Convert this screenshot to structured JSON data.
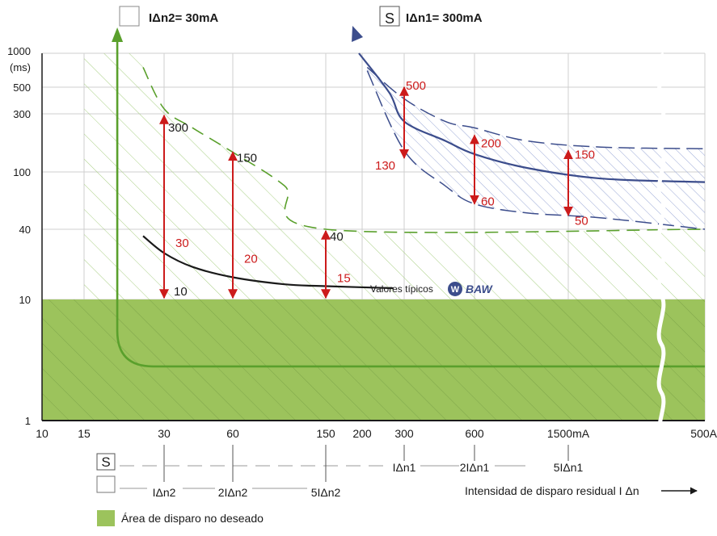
{
  "header": {
    "legend_30ma": "IΔn2= 30mA",
    "legend_300ma": "IΔn1= 300mA",
    "s_symbol": "S"
  },
  "chart_data": {
    "type": "line",
    "y_scale": "log",
    "x_scale": "log",
    "y_ticks": [
      {
        "value": 1000,
        "label": "1000"
      },
      {
        "value": 500,
        "label": "500"
      },
      {
        "value": 300,
        "label": "300"
      },
      {
        "value": 100,
        "label": "100"
      },
      {
        "value": 40,
        "label": "40"
      },
      {
        "value": 10,
        "label": "10"
      },
      {
        "value": 1,
        "label": "1"
      }
    ],
    "y_unit": "(ms)",
    "x_ticks": [
      {
        "value": 10,
        "label": "10"
      },
      {
        "value": 15,
        "label": "15"
      },
      {
        "value": 30,
        "label": "30"
      },
      {
        "value": 60,
        "label": "60"
      },
      {
        "value": 150,
        "label": "150"
      },
      {
        "value": 200,
        "label": "200"
      },
      {
        "value": 300,
        "label": "300"
      },
      {
        "value": 600,
        "label": "600"
      },
      {
        "value": 1500,
        "label": "1500mA"
      },
      {
        "value": 5000,
        "label": "500A"
      }
    ],
    "s_row_labels": [
      {
        "value": 300,
        "label": "IΔn1"
      },
      {
        "value": 600,
        "label": "2IΔn1"
      },
      {
        "value": 1500,
        "label": "5IΔn1"
      }
    ],
    "plain_row_labels": [
      {
        "value": 30,
        "label": "IΔn2"
      },
      {
        "value": 60,
        "label": "2IΔn2"
      },
      {
        "value": 150,
        "label": "5IΔn2"
      }
    ],
    "xlabel": "Intensidad de disparo residual I Δn",
    "typical_label": "Valores típicos",
    "brand": "BAW",
    "undesired_area_label": "Área de disparo no deseado",
    "series": [
      {
        "name": "IΔn2= 30mA",
        "points": [
          [
            20,
            1000
          ],
          [
            20,
            5
          ],
          [
            35,
            2.8
          ],
          [
            5000,
            2.8
          ]
        ]
      },
      {
        "name": "IΔn1= 300mA",
        "points": [
          [
            195,
            1000
          ],
          [
            260,
            450
          ],
          [
            300,
            260
          ],
          [
            450,
            180
          ],
          [
            600,
            140
          ],
          [
            1000,
            108
          ],
          [
            2000,
            90
          ],
          [
            5000,
            85
          ]
        ]
      },
      {
        "name": "Valores típicos",
        "points": [
          [
            25,
            35
          ],
          [
            30,
            25
          ],
          [
            40,
            19
          ],
          [
            60,
            15.5
          ],
          [
            100,
            13.5
          ],
          [
            150,
            13
          ],
          [
            270,
            12.5
          ]
        ]
      }
    ],
    "band_30ma": {
      "upper": [
        [
          25,
          750
        ],
        [
          30,
          330
        ],
        [
          40,
          230
        ],
        [
          60,
          145
        ],
        [
          100,
          80
        ],
        [
          150,
          40
        ],
        [
          5000,
          40
        ]
      ],
      "lower_ms": 10
    },
    "band_300ma": {
      "upper": [
        [
          210,
          750
        ],
        [
          300,
          400
        ],
        [
          450,
          260
        ],
        [
          600,
          230
        ],
        [
          1000,
          180
        ],
        [
          2000,
          160
        ],
        [
          5000,
          155
        ]
      ],
      "lower": [
        [
          210,
          700
        ],
        [
          300,
          150
        ],
        [
          450,
          80
        ],
        [
          600,
          60
        ],
        [
          1000,
          52
        ],
        [
          2000,
          48
        ],
        [
          5000,
          40
        ]
      ]
    },
    "arrows_30ma": [
      {
        "x": 30,
        "min": 10,
        "max": 300,
        "min_label": "10",
        "max_label": "300",
        "mid_label": "30"
      },
      {
        "x": 60,
        "min": 10,
        "max": 150,
        "min_label": "",
        "max_label": "150",
        "mid_label": "20"
      },
      {
        "x": 150,
        "min": 10,
        "max": 40,
        "min_label": "",
        "max_label": "40",
        "mid_label": "15"
      }
    ],
    "arrows_300ma": [
      {
        "x": 300,
        "min": 130,
        "max": 500,
        "min_label": "130",
        "max_label": "500"
      },
      {
        "x": 600,
        "min": 60,
        "max": 200,
        "min_label": "60",
        "max_label": "200"
      },
      {
        "x": 1500,
        "min": 50,
        "max": 150,
        "min_label": "50",
        "max_label": "150"
      }
    ],
    "colors": {
      "green": "#5aa02c",
      "green_fill": "#9cc35c",
      "green_hatch": "#a9cf84",
      "blue": "#3c4d8c",
      "blue_hatch": "#9aa8d6",
      "red": "#cc1b1b",
      "black": "#1a1a1a"
    }
  }
}
